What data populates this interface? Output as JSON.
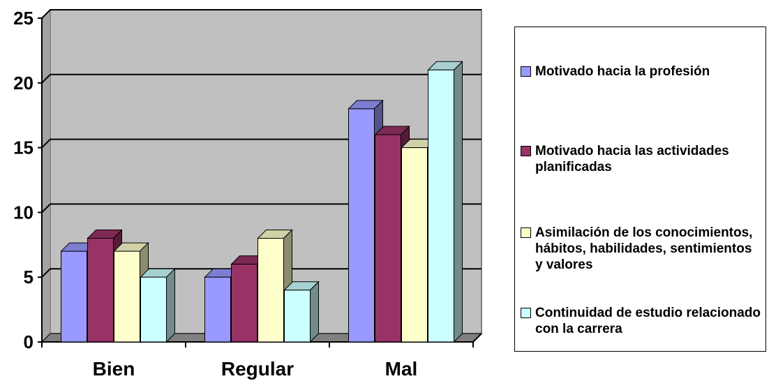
{
  "chart_data": {
    "type": "bar",
    "categories": [
      "Bien",
      "Regular",
      "Mal"
    ],
    "series": [
      {
        "name": "Motivado hacia la profesión",
        "values": [
          7,
          5,
          18
        ],
        "color": "#9999ff"
      },
      {
        "name": "Motivado hacia las actividades planificadas",
        "values": [
          8,
          6,
          16
        ],
        "color": "#993366"
      },
      {
        "name": "Asimilación de los conocimientos, hábitos, habilidades, sentimientos y valores",
        "values": [
          7,
          8,
          15
        ],
        "color": "#ffffcc"
      },
      {
        "name": "Continuidad de estudio relacionado con la carrera",
        "values": [
          5,
          4,
          21
        ],
        "color": "#ccffff"
      }
    ],
    "ylim": [
      0,
      25
    ],
    "yticks": [
      "0",
      "5",
      "10",
      "15",
      "20",
      "25"
    ],
    "grid": true,
    "legend": "right",
    "wall_color": "#c0c0c0",
    "floor_color": "#808080",
    "three_d": true
  }
}
